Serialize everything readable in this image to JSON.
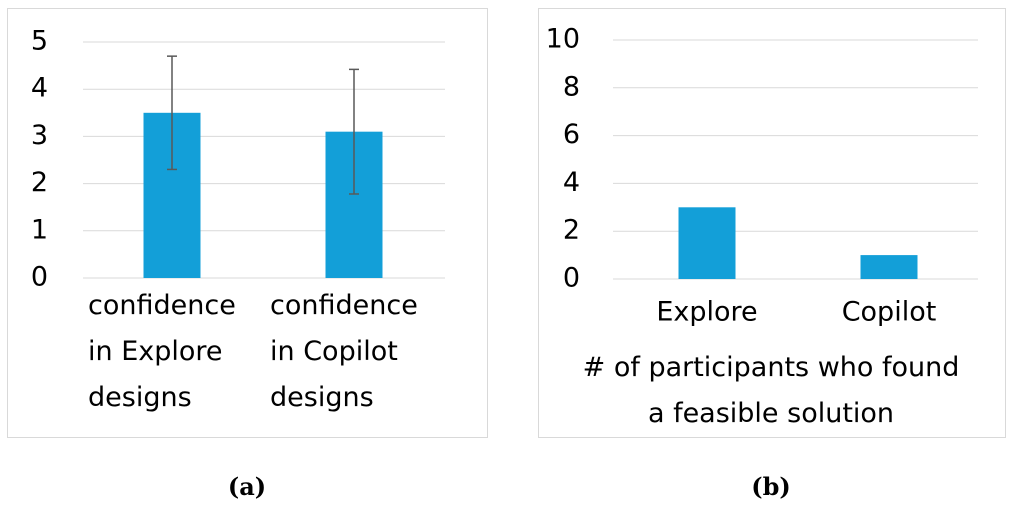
{
  "chart_data": [
    {
      "type": "bar",
      "categories": [
        "confidence in Explore designs",
        "confidence in Copilot designs"
      ],
      "values": [
        3.5,
        3.1
      ],
      "errors": [
        1.2,
        1.32
      ],
      "color": "#139fd8",
      "ylim": [
        0,
        5
      ],
      "yticks": [
        0,
        1,
        2,
        3,
        4,
        5
      ],
      "grid": true,
      "caption": "(a)"
    },
    {
      "type": "bar",
      "categories": [
        "Explore",
        "Copilot"
      ],
      "values": [
        3,
        1
      ],
      "color": "#139fd8",
      "ylim": [
        0,
        10
      ],
      "yticks": [
        0,
        2,
        4,
        6,
        8,
        10
      ],
      "grid": true,
      "x_label": "# of participants who found a feasible solution",
      "caption": "(b)"
    }
  ]
}
